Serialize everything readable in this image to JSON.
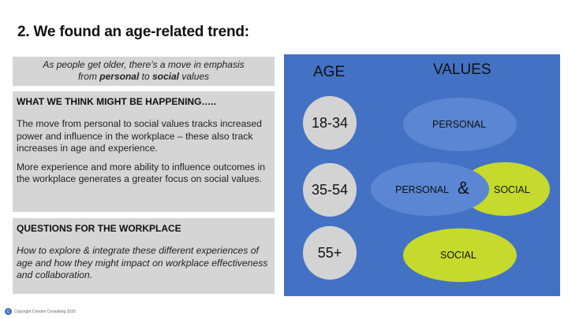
{
  "title": "2. We found an age-related trend:",
  "intro": {
    "line1": "As people get older, there’s a move in emphasis",
    "line2_pre": "from ",
    "line2_bold1": "personal",
    "line2_mid": " to ",
    "line2_bold2": "social",
    "line2_post": " values"
  },
  "think": {
    "heading": "WHAT WE THINK MIGHT BE HAPPENING…..",
    "para1": "The move from personal to social values tracks increased power and influence in the workplace – these also track increases in age and experience.",
    "para2": "More experience and more ability to influence outcomes in the workplace generates a greater focus on social values."
  },
  "questions": {
    "heading": "QUESTIONS FOR THE WORKPLACE",
    "para": "How to explore & integrate these different experiences of age and how they might impact on workplace effectiveness and collaboration."
  },
  "diagram": {
    "age_header": "AGE",
    "values_header": "VALUES",
    "rows": [
      {
        "age": "18-34",
        "values": [
          "PERSONAL"
        ]
      },
      {
        "age": "35-54",
        "values": [
          "PERSONAL",
          "&",
          "SOCIAL"
        ]
      },
      {
        "age": "55+",
        "values": [
          "SOCIAL"
        ]
      }
    ],
    "colors": {
      "background": "#4372c4",
      "personal": "#5b86d3",
      "social": "#c5da2c",
      "age_circle": "#d3d3d3"
    }
  },
  "footer": {
    "copyright": "Copyright Condon Consulting 2020",
    "icon": "c-logo-icon"
  }
}
